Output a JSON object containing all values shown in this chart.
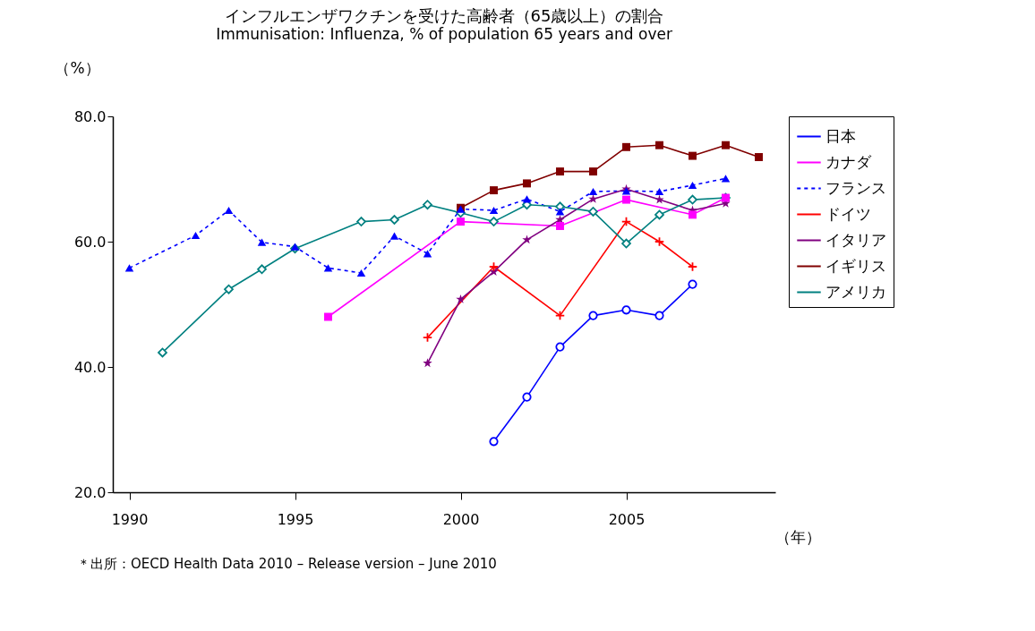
{
  "chart_data": {
    "type": "line",
    "title": "インフルエンザワクチンを受けた高齢者（65歳以上）の割合",
    "subtitle": "Immunisation: Influenza, % of population 65 years and over",
    "xlabel": "（年）",
    "ylabel": "（%）",
    "xlim": [
      1989.5,
      2009.5
    ],
    "xticks": [
      1990,
      1995,
      2000,
      2005
    ],
    "ylim": [
      20,
      80
    ],
    "yticks": [
      {
        "value": 20,
        "label": "20.0"
      },
      {
        "value": 40,
        "label": "40.0"
      },
      {
        "value": 60,
        "label": "60.0"
      },
      {
        "value": 80,
        "label": "80.0"
      }
    ],
    "grid": false,
    "legend": "right",
    "series": [
      {
        "name": "日本",
        "color": "#0000ff",
        "marker": "circle",
        "line_style": "solid",
        "x": [
          2001,
          2002,
          2003,
          2004,
          2005,
          2006,
          2007
        ],
        "values": [
          28.1,
          35.2,
          43.2,
          48.2,
          49.1,
          48.2,
          53.2
        ]
      },
      {
        "name": "カナダ",
        "color": "#ff00ff",
        "marker": "square",
        "line_style": "solid",
        "x": [
          1996,
          2000,
          2003,
          2005,
          2007,
          2008
        ],
        "values": [
          48.0,
          63.2,
          62.5,
          66.7,
          64.3,
          67.0
        ]
      },
      {
        "name": "フランス",
        "color": "#0000ff",
        "marker": "triangle",
        "line_style": "dashed",
        "x": [
          1990,
          1992,
          1993,
          1994,
          1995,
          1996,
          1997,
          1998,
          1999,
          2000,
          2001,
          2002,
          2003,
          2004,
          2005,
          2006,
          2007,
          2008
        ],
        "values": [
          55.8,
          61.0,
          65.0,
          59.9,
          59.2,
          55.8,
          55.0,
          60.9,
          58.1,
          65.2,
          65.0,
          66.8,
          64.8,
          68.0,
          68.1,
          68.0,
          69.0,
          70.1
        ]
      },
      {
        "name": "ドイツ",
        "color": "#ff0000",
        "marker": "cross",
        "line_style": "solid",
        "x": [
          1999,
          2001,
          2003,
          2005,
          2006,
          2007
        ],
        "values": [
          44.7,
          56.0,
          48.2,
          63.2,
          60.0,
          56.0
        ]
      },
      {
        "name": "イタリア",
        "color": "#800080",
        "marker": "star",
        "line_style": "solid",
        "x": [
          1999,
          2000,
          2001,
          2002,
          2003,
          2004,
          2005,
          2006,
          2007,
          2008
        ],
        "values": [
          40.6,
          50.8,
          55.2,
          60.3,
          63.5,
          66.8,
          68.4,
          66.7,
          65.0,
          66.1
        ]
      },
      {
        "name": "イギリス",
        "color": "#800000",
        "marker": "square",
        "line_style": "solid",
        "x": [
          2000,
          2001,
          2002,
          2003,
          2004,
          2005,
          2006,
          2007,
          2008,
          2009
        ],
        "values": [
          65.4,
          68.2,
          69.3,
          71.2,
          71.2,
          75.1,
          75.4,
          73.7,
          75.4,
          73.5
        ]
      },
      {
        "name": "アメリカ",
        "color": "#008080",
        "marker": "diamond",
        "line_style": "solid",
        "x": [
          1991,
          1993,
          1994,
          1995,
          1997,
          1998,
          1999,
          2000,
          2001,
          2002,
          2003,
          2004,
          2005,
          2006,
          2007,
          2008
        ],
        "values": [
          42.3,
          52.4,
          55.6,
          58.9,
          63.2,
          63.5,
          65.9,
          64.6,
          63.2,
          65.9,
          65.6,
          64.8,
          59.7,
          64.3,
          66.7,
          67.0
        ]
      }
    ],
    "annotations": [
      "＊出所：OECD Health Data 2010 – Release version – June 2010"
    ]
  }
}
